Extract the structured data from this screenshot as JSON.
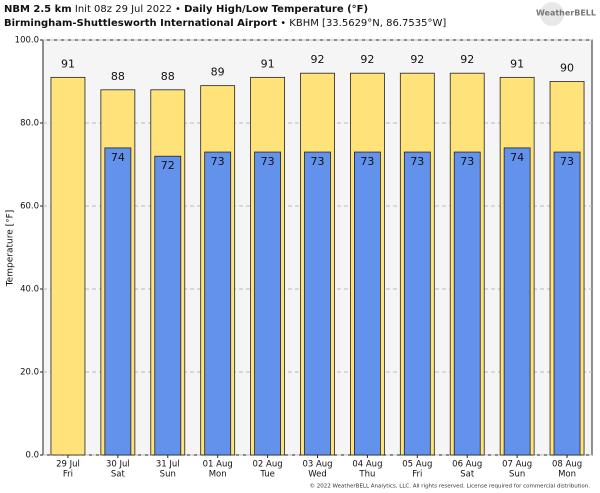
{
  "chart_data": {
    "type": "bar",
    "model": "NBM 2.5 km",
    "init": "Init 08z 29 Jul 2022 •",
    "title": "Daily High/Low Temperature (°F)",
    "station": "Birmingham-Shuttlesworth International Airport",
    "station_info": "• KBHM [33.5629°N, 86.7535°W]",
    "logo": "WeatherBELL",
    "footer": "© 2022 WeatherBELL Analytics, LLC. All rights reserved. License required for commercial distribution.",
    "y_label": "Temperature [°F]",
    "categories": [
      "29 Jul",
      "30 Jul",
      "31 Jul",
      "01 Aug",
      "02 Aug",
      "03 Aug",
      "04 Aug",
      "05 Aug",
      "06 Aug",
      "07 Aug",
      "08 Aug"
    ],
    "weekdays": [
      "Fri",
      "Sat",
      "Sun",
      "Mon",
      "Tue",
      "Wed",
      "Thu",
      "Fri",
      "Sat",
      "Sun",
      "Mon"
    ],
    "series": [
      {
        "name": "High",
        "color": "#ffe27a",
        "values": [
          91,
          88,
          88,
          89,
          91,
          92,
          92,
          92,
          92,
          91,
          90
        ]
      },
      {
        "name": "Low",
        "color": "#6392ec",
        "values": [
          null,
          74,
          72,
          73,
          73,
          73,
          73,
          73,
          73,
          74,
          73
        ]
      }
    ],
    "ylim": [
      0,
      100
    ],
    "yticks": [
      {
        "value": 0,
        "label": "0.0"
      },
      {
        "value": 20,
        "label": "20.0"
      },
      {
        "value": 40,
        "label": "40.0"
      },
      {
        "value": 60,
        "label": "60.0"
      },
      {
        "value": 80,
        "label": "80.0"
      },
      {
        "value": 100,
        "label": "100.0"
      }
    ],
    "grid": true
  }
}
